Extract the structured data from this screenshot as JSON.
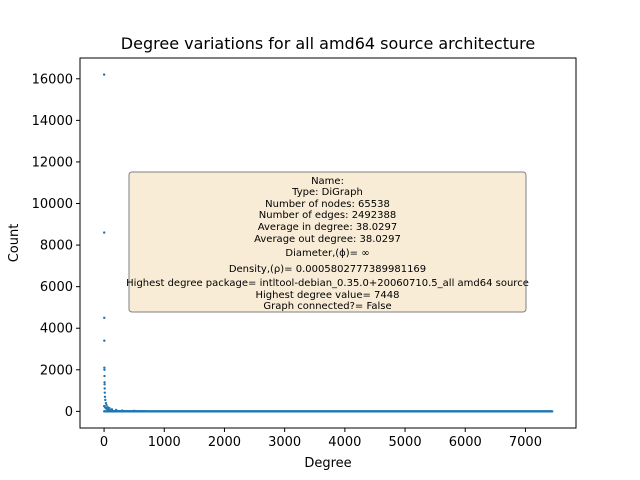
{
  "chart_data": {
    "type": "scatter",
    "title": "Degree variations for all amd64 source architecture",
    "xlabel": "Degree",
    "ylabel": "Count",
    "xlim": [
      -400,
      7840
    ],
    "ylim": [
      -800,
      17000
    ],
    "xticks": [
      0,
      1000,
      2000,
      3000,
      4000,
      5000,
      6000,
      7000
    ],
    "xtick_labels": [
      "0",
      "1000",
      "2000",
      "3000",
      "4000",
      "5000",
      "6000",
      "7000"
    ],
    "yticks": [
      0,
      2000,
      4000,
      6000,
      8000,
      10000,
      12000,
      14000,
      16000
    ],
    "ytick_labels": [
      "0",
      "2000",
      "4000",
      "6000",
      "8000",
      "10000",
      "12000",
      "14000",
      "16000"
    ],
    "grid": false,
    "marker_color": "#1f77b4",
    "outlier_points": [
      {
        "x": 1,
        "y": 16200
      },
      {
        "x": 2,
        "y": 8600
      },
      {
        "x": 3,
        "y": 4500
      },
      {
        "x": 4,
        "y": 3400
      },
      {
        "x": 5,
        "y": 2100
      },
      {
        "x": 6,
        "y": 2000
      },
      {
        "x": 7,
        "y": 1700
      },
      {
        "x": 8,
        "y": 1400
      },
      {
        "x": 9,
        "y": 1300
      },
      {
        "x": 10,
        "y": 1100
      },
      {
        "x": 12,
        "y": 900
      },
      {
        "x": 15,
        "y": 700
      },
      {
        "x": 20,
        "y": 550
      },
      {
        "x": 30,
        "y": 400
      },
      {
        "x": 40,
        "y": 300
      },
      {
        "x": 60,
        "y": 200
      },
      {
        "x": 90,
        "y": 150
      },
      {
        "x": 130,
        "y": 100
      },
      {
        "x": 200,
        "y": 70
      },
      {
        "x": 300,
        "y": 40
      },
      {
        "x": 500,
        "y": 25
      }
    ],
    "tail_range": {
      "x_start": 0,
      "x_end": 7448,
      "y_value": 0
    },
    "annotation": {
      "box_color": "#f9ecd7",
      "lines": [
        "Name:",
        "Type: DiGraph",
        "Number of nodes: 65538",
        "Number of edges: 2492388",
        "Average in degree:  38.0297",
        "Average out degree:  38.0297",
        "Diameter,(ϕ)= ∞",
        "Density,(ρ)= 0.0005802777389981169",
        "Highest degree package= intltool-debian_0.35.0+20060710.5_all amd64 source",
        "Highest degree value= 7448",
        "Graph connected?= False"
      ]
    }
  }
}
